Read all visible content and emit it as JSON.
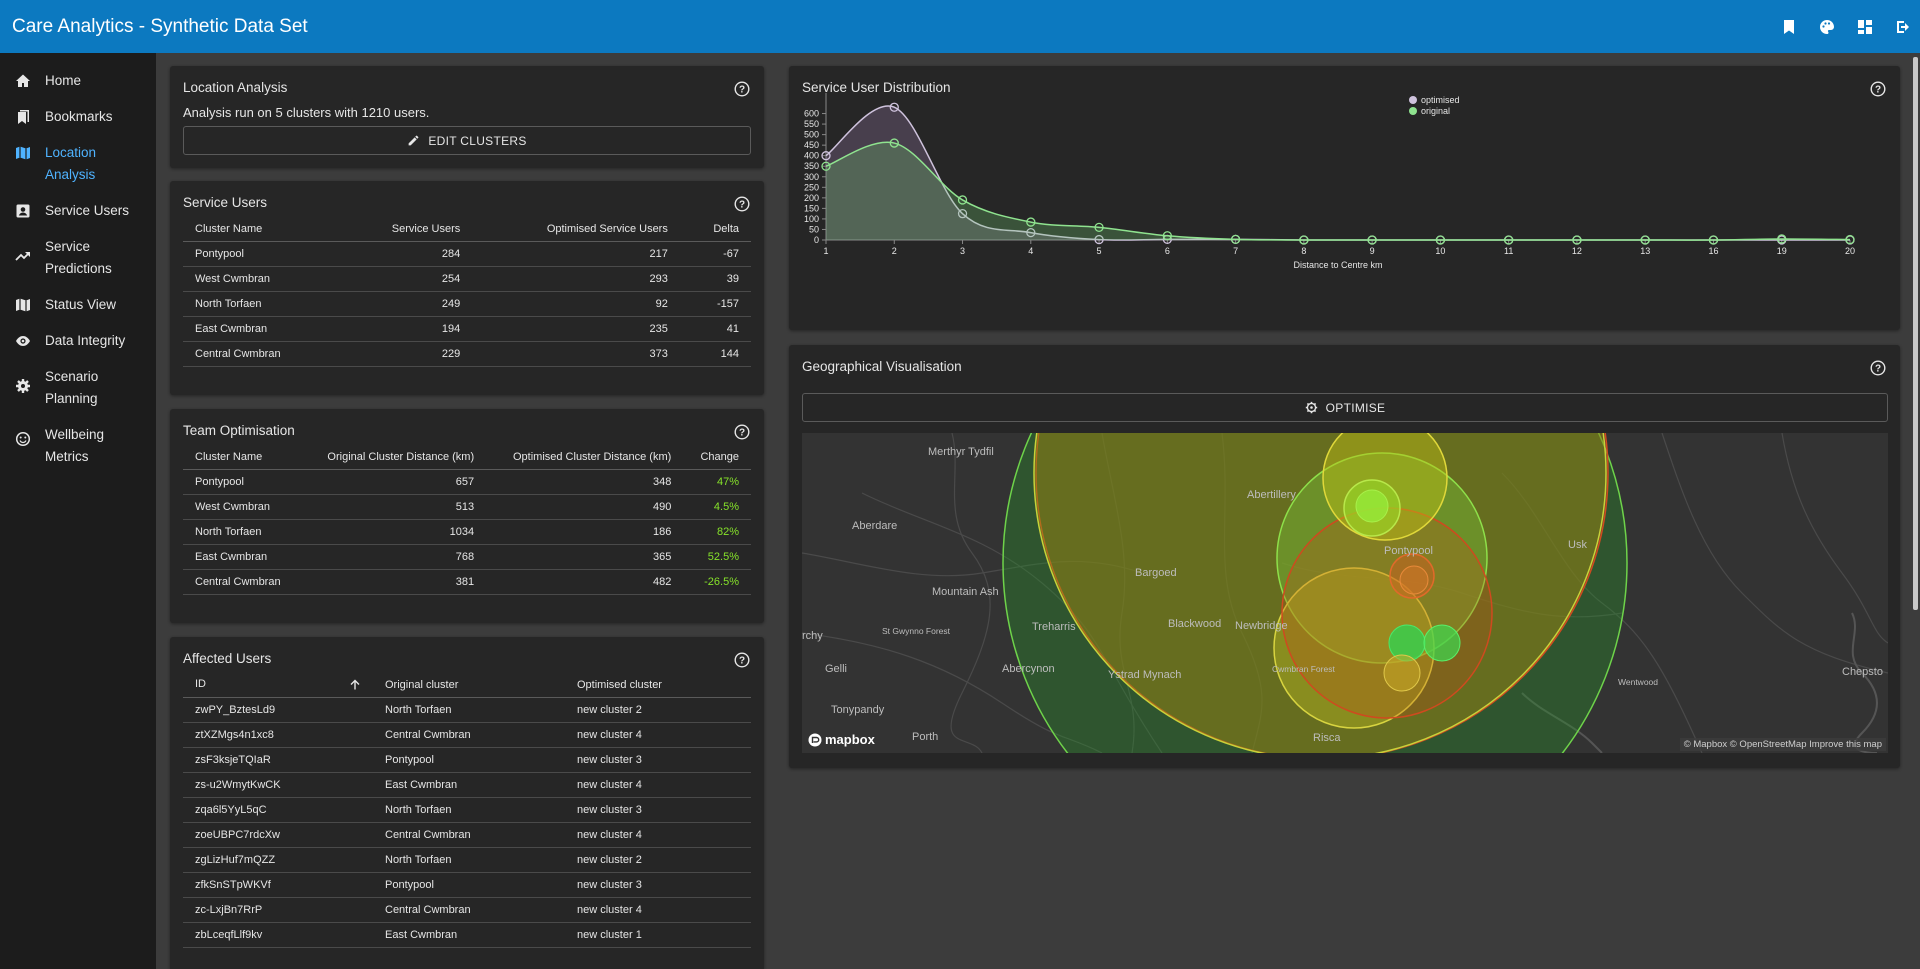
{
  "app": {
    "title": "Care Analytics - Synthetic Data Set",
    "actions": [
      {
        "icon": "bookmark-icon"
      },
      {
        "icon": "palette-icon"
      },
      {
        "icon": "dashboard-icon"
      },
      {
        "icon": "logout-icon"
      }
    ]
  },
  "sidebar": {
    "items": [
      {
        "label": "Home",
        "icon": "home-icon",
        "active": false
      },
      {
        "label": "Bookmarks",
        "icon": "bookmarks-icon",
        "active": false
      },
      {
        "label": "Location Analysis",
        "icon": "map-icon",
        "active": true
      },
      {
        "label": "Service Users",
        "icon": "contact-icon",
        "active": false
      },
      {
        "label": "Service Predictions",
        "icon": "trending-up-icon",
        "active": false
      },
      {
        "label": "Status View",
        "icon": "map-icon",
        "active": false
      },
      {
        "label": "Data Integrity",
        "icon": "eye-icon",
        "active": false
      },
      {
        "label": "Scenario Planning",
        "icon": "gear-icon",
        "active": false
      },
      {
        "label": "Wellbeing Metrics",
        "icon": "smiley-icon",
        "active": false
      }
    ]
  },
  "location_analysis": {
    "title": "Location Analysis",
    "summary": "Analysis run on 5 clusters with 1210 users.",
    "edit_button": "EDIT CLUSTERS"
  },
  "service_users": {
    "title": "Service Users",
    "headers": [
      "Cluster Name",
      "Service Users",
      "Optimised Service Users",
      "Delta"
    ],
    "rows": [
      [
        "Pontypool",
        "284",
        "217",
        "-67"
      ],
      [
        "West Cwmbran",
        "254",
        "293",
        "39"
      ],
      [
        "North Torfaen",
        "249",
        "92",
        "-157"
      ],
      [
        "East Cwmbran",
        "194",
        "235",
        "41"
      ],
      [
        "Central Cwmbran",
        "229",
        "373",
        "144"
      ]
    ]
  },
  "team_optimisation": {
    "title": "Team Optimisation",
    "headers": [
      "Cluster Name",
      "Original Cluster Distance (km)",
      "Optimised Cluster Distance (km)",
      "Change"
    ],
    "rows": [
      [
        "Pontypool",
        "657",
        "348",
        "47%"
      ],
      [
        "West Cwmbran",
        "513",
        "490",
        "4.5%"
      ],
      [
        "North Torfaen",
        "1034",
        "186",
        "82%"
      ],
      [
        "East Cwmbran",
        "768",
        "365",
        "52.5%"
      ],
      [
        "Central Cwmbran",
        "381",
        "482",
        "-26.5%"
      ]
    ]
  },
  "affected_users": {
    "title": "Affected Users",
    "headers": [
      "ID",
      "Original cluster",
      "Optimised cluster"
    ],
    "rows": [
      [
        "zwPY_BztesLd9",
        "North Torfaen",
        "new cluster 2"
      ],
      [
        "ztXZMgs4n1xc8",
        "Central Cwmbran",
        "new cluster 4"
      ],
      [
        "zsF3ksjeTQIaR",
        "Pontypool",
        "new cluster 3"
      ],
      [
        "zs-u2WmytKwCK",
        "East Cwmbran",
        "new cluster 4"
      ],
      [
        "zqa6l5YyL5qC",
        "North Torfaen",
        "new cluster 3"
      ],
      [
        "zoeUBPC7rdcXw",
        "Central Cwmbran",
        "new cluster 4"
      ],
      [
        "zgLizHuf7mQZZ",
        "North Torfaen",
        "new cluster 2"
      ],
      [
        "zfkSnSTpWKVf",
        "Pontypool",
        "new cluster 3"
      ],
      [
        "zc-LxjBn7RrP",
        "Central Cwmbran",
        "new cluster 4"
      ],
      [
        "zbLceqfLlf9kv",
        "East Cwmbran",
        "new cluster 1"
      ]
    ]
  },
  "distribution": {
    "title": "Service User Distribution"
  },
  "chart_data": {
    "type": "area",
    "title": "",
    "xlabel": "Distance to Centre km",
    "ylabel": "",
    "x": [
      1,
      2,
      3,
      4,
      5,
      6,
      7,
      8,
      9,
      10,
      11,
      12,
      13,
      16,
      19,
      20
    ],
    "y_ticks": [
      0,
      50,
      100,
      150,
      200,
      250,
      300,
      350,
      400,
      450,
      500,
      550,
      600
    ],
    "ylim": [
      0,
      650
    ],
    "legend_position": "top-right",
    "series": [
      {
        "name": "optimised",
        "color": "#cfc3dd",
        "values": [
          400,
          630,
          125,
          35,
          2,
          3,
          3,
          0,
          0,
          0,
          0,
          0,
          0,
          0,
          0,
          0
        ]
      },
      {
        "name": "original",
        "color": "#8fe38f",
        "values": [
          350,
          460,
          190,
          85,
          60,
          20,
          3,
          0,
          0,
          0,
          0,
          0,
          0,
          0,
          5,
          2
        ]
      }
    ]
  },
  "geo": {
    "title": "Geographical Visualisation",
    "optimise_button": "OPTIMISE",
    "place_labels": [
      "Merthyr Tydfil",
      "Abertillery",
      "Aberdare",
      "Pontypool",
      "Usk",
      "Bargoed",
      "Mountain Ash",
      "Blackwood",
      "Newbridge",
      "St Gwynno Forest",
      "Treharris",
      "rchy",
      "Gelli",
      "Abercynon",
      "Ystrad Mynach",
      "Cwmbran Forest",
      "Wentwood",
      "Chepsto",
      "Tonypandy",
      "Porth",
      "Risca"
    ],
    "attribution": "© Mapbox © OpenStreetMap Improve this map",
    "logo": "mapbox"
  }
}
